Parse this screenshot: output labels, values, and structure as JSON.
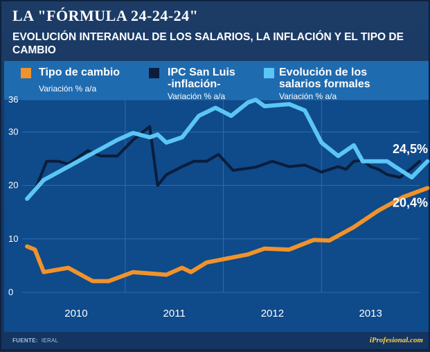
{
  "title": "LA \"FÓRMULA 24-24-24\"",
  "subtitle": "EVOLUCIÓN INTERANUAL DE LOS SALARIOS, LA INFLACIÓN Y EL TIPO DE CAMBIO",
  "legend": [
    {
      "name_lines": [
        "Tipo de cambio"
      ],
      "sub": "Variación % a/a",
      "color": "#f0932b"
    },
    {
      "name_lines": [
        "IPC San Luis",
        "-inflación-"
      ],
      "sub": "Variación % a/a",
      "color": "#0a1d3b"
    },
    {
      "name_lines": [
        "Evolución de los",
        "salarios formales"
      ],
      "sub": "Variación % a/a",
      "color": "#5bc6f5"
    }
  ],
  "footer": {
    "source_label": "FUENTE:",
    "source": "IERAL",
    "brand": "iProfesional.com"
  },
  "colors": {
    "plot_bg": "#0f4a8a",
    "grid": "#2a6eb0",
    "axis_text": "#ffffff"
  },
  "chart_data": {
    "type": "line",
    "title": "Evolución interanual de los salarios, la inflación y el tipo de cambio",
    "xlabel": "",
    "ylabel": "Variación % a/a",
    "y_ticks": [
      0,
      10,
      20,
      30,
      36
    ],
    "ylim": [
      0,
      36
    ],
    "x_range": [
      2009.45,
      2013.5
    ],
    "x_ticks": [
      {
        "label": "2010",
        "x": 2010.0
      },
      {
        "label": "2011",
        "x": 2011.0
      },
      {
        "label": "2012",
        "x": 2012.0
      },
      {
        "label": "2013",
        "x": 2013.0
      }
    ],
    "x_gridlines": [
      2010.5,
      2011.5,
      2012.5
    ],
    "series": [
      {
        "name": "Tipo de cambio",
        "color": "#f0932b",
        "x": [
          2009.5,
          2009.58,
          2009.67,
          2009.92,
          2010.17,
          2010.33,
          2010.58,
          2010.92,
          2011.08,
          2011.17,
          2011.33,
          2011.75,
          2011.92,
          2012.17,
          2012.42,
          2012.58,
          2012.83,
          2013.08,
          2013.33,
          2013.58
        ],
        "values": [
          8.6,
          8.0,
          3.8,
          4.6,
          2.1,
          2.1,
          3.8,
          3.3,
          4.6,
          3.8,
          5.6,
          7.1,
          8.2,
          8.0,
          9.8,
          9.7,
          12.2,
          15.3,
          17.8,
          19.5
        ]
      },
      {
        "name": "IPC San Luis -inflación-",
        "color": "#0a1d3b",
        "x": [
          2009.5,
          2009.6,
          2009.7,
          2009.82,
          2009.92,
          2010.0,
          2010.12,
          2010.25,
          2010.42,
          2010.58,
          2010.75,
          2010.83,
          2010.92,
          2011.08,
          2011.2,
          2011.33,
          2011.45,
          2011.6,
          2011.83,
          2012.0,
          2012.17,
          2012.33,
          2012.5,
          2012.67,
          2012.75,
          2012.83,
          2012.92,
          2013.0,
          2013.08,
          2013.17,
          2013.3,
          2013.42,
          2013.5
        ],
        "values": [
          17.5,
          20.0,
          24.5,
          24.5,
          24.0,
          25.0,
          26.5,
          25.5,
          25.5,
          28.5,
          31.0,
          20.0,
          22.0,
          23.5,
          24.5,
          24.5,
          25.8,
          22.8,
          23.4,
          24.5,
          23.5,
          23.8,
          22.5,
          23.5,
          23.0,
          24.5,
          24.7,
          23.5,
          23.0,
          22.0,
          21.5,
          23.2,
          24.5
        ]
      },
      {
        "name": "Evolución de los salarios formales",
        "color": "#5bc6f5",
        "x": [
          2009.5,
          2009.67,
          2009.92,
          2010.17,
          2010.42,
          2010.58,
          2010.75,
          2010.83,
          2010.92,
          2011.08,
          2011.25,
          2011.42,
          2011.58,
          2011.75,
          2011.83,
          2011.92,
          2012.17,
          2012.33,
          2012.5,
          2012.67,
          2012.83,
          2012.92,
          2013.08,
          2013.17,
          2013.25,
          2013.42,
          2013.58
        ],
        "values": [
          17.5,
          21.0,
          23.5,
          26.0,
          28.5,
          29.8,
          29.0,
          29.5,
          28.0,
          29.0,
          33.0,
          34.5,
          33.0,
          35.5,
          36.0,
          34.8,
          35.2,
          34.0,
          28.0,
          25.5,
          27.5,
          24.5,
          24.5,
          24.5,
          23.5,
          21.5,
          24.5
        ]
      }
    ],
    "annotations": [
      {
        "text": "24,5%",
        "series": "Evolución de los salarios formales"
      },
      {
        "text": "20,4%",
        "series": "Tipo de cambio"
      }
    ]
  }
}
